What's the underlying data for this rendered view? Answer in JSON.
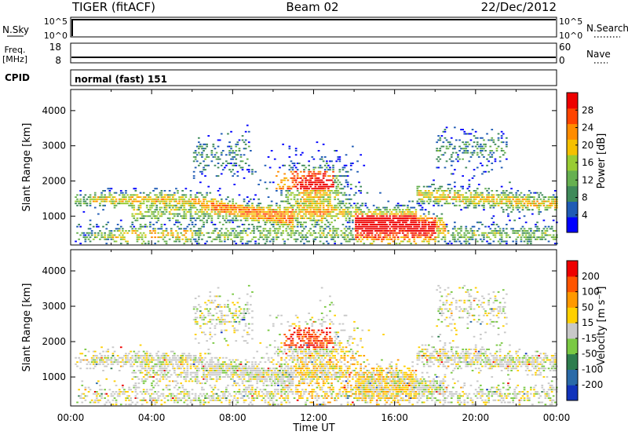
{
  "header": {
    "title": "TIGER (fitACF)",
    "beam": "Beam 02",
    "date": "22/Dec/2012"
  },
  "nsky_panel": {
    "left_label": "N.Sky",
    "right_label": "N.Search",
    "left_ticks": [
      "10^5",
      "10^0"
    ],
    "right_ticks": [
      "10^5",
      "10^0"
    ]
  },
  "freq_panel": {
    "left_label_top": "Freq.",
    "left_label_bottom": "[MHz]",
    "right_label": "Nave",
    "left_ticks": [
      "18",
      "8"
    ],
    "right_ticks": [
      "60",
      "0"
    ]
  },
  "cpid_panel": {
    "label": "CPID",
    "mode": "normal (fast) 151"
  },
  "power_panel": {
    "ylabel": "Slant Range [km]",
    "colorbar_label": "Power [dB]",
    "colorbar_ticks": [
      "28",
      "24",
      "20",
      "16",
      "12",
      "8",
      "4"
    ],
    "colors": [
      "#0000ff",
      "#1f5bb5",
      "#3f8a5a",
      "#66b050",
      "#99cc33",
      "#f5c000",
      "#ff8c00",
      "#ff4400",
      "#ee0000"
    ]
  },
  "velocity_panel": {
    "ylabel": "Slant Range [km]",
    "colorbar_label": "Velocity [m s⁻¹]",
    "colorbar_ticks": [
      "200",
      "100",
      "50",
      "15",
      "-15",
      "-50",
      "-100",
      "-200"
    ],
    "colors": [
      "#1133bb",
      "#2a6aa8",
      "#2e7d4e",
      "#7ac943",
      "#c8c8c8",
      "#ffd000",
      "#ff9900",
      "#ff5500",
      "#ee0000"
    ]
  },
  "chart_data": [
    {
      "type": "heatmap",
      "title": "Power",
      "xlabel": "Time UT",
      "ylabel": "Slant Range [km]",
      "x_ticks": [
        "00:00",
        "04:00",
        "08:00",
        "12:00",
        "16:00",
        "20:00",
        "00:00"
      ],
      "xlim_hours": [
        0,
        24
      ],
      "y_ticks": [
        1000,
        2000,
        3000,
        4000
      ],
      "ylim_km": [
        180,
        4600
      ],
      "colorbar": {
        "label": "Power [dB]",
        "range": [
          0,
          30
        ],
        "ticks": [
          4,
          8,
          12,
          16,
          20,
          24,
          28
        ]
      }
    },
    {
      "type": "heatmap",
      "title": "Velocity",
      "xlabel": "Time UT",
      "ylabel": "Slant Range [km]",
      "x_ticks": [
        "00:00",
        "04:00",
        "08:00",
        "12:00",
        "16:00",
        "20:00",
        "00:00"
      ],
      "xlim_hours": [
        0,
        24
      ],
      "y_ticks": [
        1000,
        2000,
        3000,
        4000
      ],
      "ylim_km": [
        180,
        4600
      ],
      "colorbar": {
        "label": "Velocity [m s^-1]",
        "range": [
          -250,
          250
        ],
        "ticks": [
          200,
          100,
          50,
          15,
          -15,
          -50,
          -100,
          -200
        ]
      }
    }
  ],
  "axis": {
    "xlabel": "Time UT",
    "x_ticks": [
      "00:00",
      "04:00",
      "08:00",
      "12:00",
      "16:00",
      "20:00",
      "00:00"
    ],
    "y_ticks": [
      "1000",
      "2000",
      "3000",
      "4000"
    ]
  }
}
